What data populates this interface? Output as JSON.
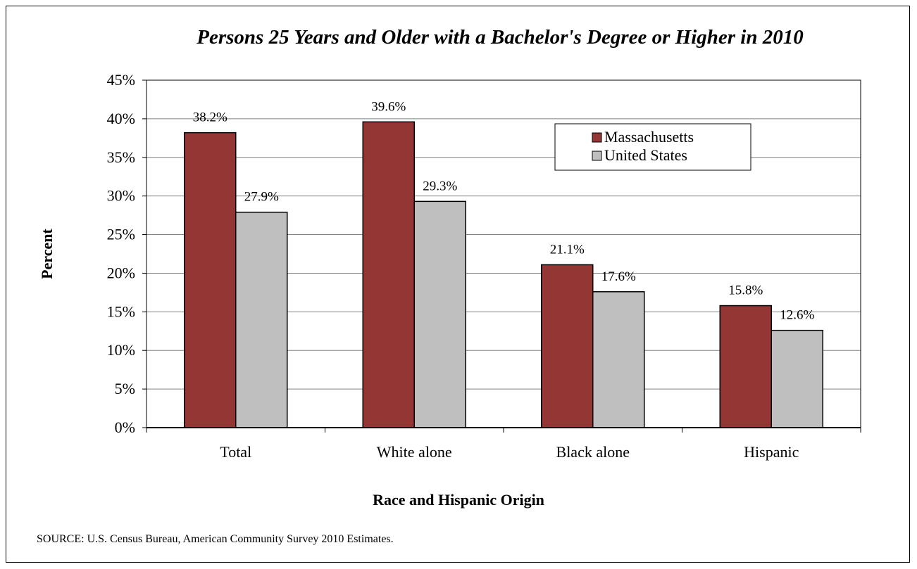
{
  "chart_data": {
    "type": "bar",
    "title": "Persons 25 Years and Older with a Bachelor's Degree or Higher in 2010",
    "xlabel": "Race and Hispanic Origin",
    "ylabel": "Percent",
    "categories": [
      "Total",
      "White alone",
      "Black alone",
      "Hispanic"
    ],
    "series": [
      {
        "name": "Massachusetts",
        "color": "#943634",
        "values": [
          38.2,
          39.6,
          21.1,
          15.8
        ],
        "labels": [
          "38.2%",
          "39.6%",
          "21.1%",
          "15.8%"
        ]
      },
      {
        "name": "United States",
        "color": "#BFBFBF",
        "values": [
          27.9,
          29.3,
          17.6,
          12.6
        ],
        "labels": [
          "27.9%",
          "29.3%",
          "17.6%",
          "12.6%"
        ]
      }
    ],
    "ylim": [
      0,
      45
    ],
    "yticks": [
      "0%",
      "5%",
      "10%",
      "15%",
      "20%",
      "25%",
      "30%",
      "35%",
      "40%",
      "45%"
    ],
    "grid": true,
    "legend_position": "top-right"
  },
  "source": "SOURCE: U.S. Census Bureau,  American Community Survey 2010 Estimates."
}
